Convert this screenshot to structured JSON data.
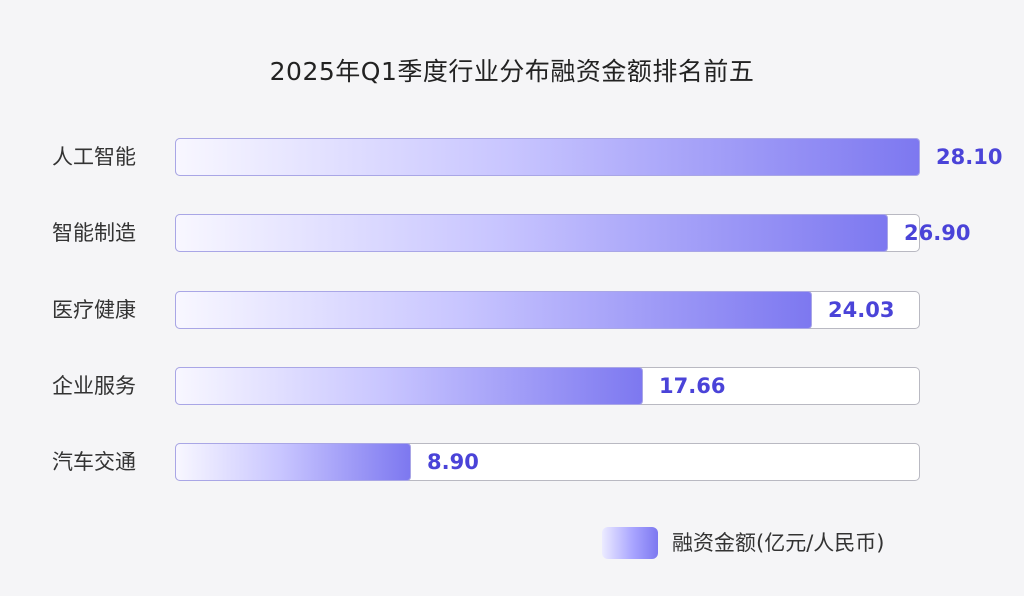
{
  "chart_data": {
    "type": "bar",
    "orientation": "horizontal",
    "title": "2025年Q1季度行业分布融资金额排名前五",
    "categories": [
      "人工智能",
      "智能制造",
      "医疗健康",
      "企业服务",
      "汽车交通"
    ],
    "series": [
      {
        "name": "融资金额(亿元/人民币)",
        "values": [
          28.1,
          26.9,
          24.03,
          17.66,
          8.9
        ]
      }
    ],
    "value_labels": [
      "28.10",
      "26.90",
      "24.03",
      "17.66",
      "8.90"
    ],
    "xlim": [
      0,
      28.1
    ],
    "grid": false,
    "legend_position": "bottom-right",
    "colors": {
      "bar_start": "#f8f7ff",
      "bar_end": "#7d78f0",
      "label": "#4a43d8",
      "track_border": "#b9b9c2"
    }
  }
}
